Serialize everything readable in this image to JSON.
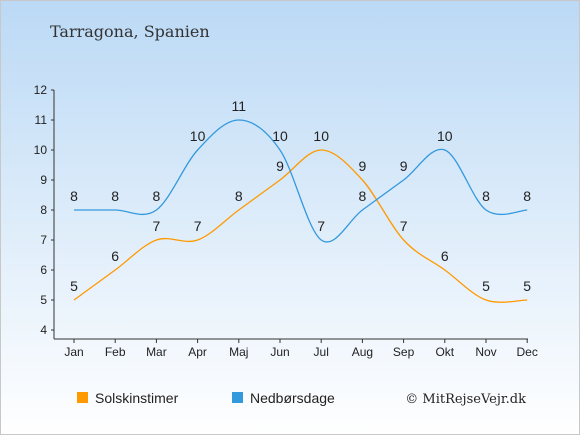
{
  "chart_data": {
    "type": "line",
    "title": "Tarragona, Spanien",
    "categories": [
      "Jan",
      "Feb",
      "Mar",
      "Apr",
      "Maj",
      "Jun",
      "Jul",
      "Aug",
      "Sep",
      "Okt",
      "Nov",
      "Dec"
    ],
    "series": [
      {
        "name": "Solskinstimer",
        "color": "#FF9900",
        "values": [
          5,
          6,
          7,
          7,
          8,
          9,
          10,
          9,
          7,
          6,
          5,
          5
        ]
      },
      {
        "name": "Nedbørsdage",
        "color": "#3399DD",
        "values": [
          8,
          8,
          8,
          10,
          11,
          10,
          7,
          8,
          9,
          10,
          8,
          8
        ]
      }
    ],
    "ylim": [
      4,
      12
    ],
    "yticks": [
      4,
      5,
      6,
      7,
      8,
      9,
      10,
      11,
      12
    ],
    "grid": false,
    "legend": "bottom-left",
    "credit": "© MitRejseVejr.dk"
  },
  "colors": {
    "background_top": "#BBD9F5",
    "background_bottom": "#FFFFFF",
    "axis": "#333333"
  }
}
